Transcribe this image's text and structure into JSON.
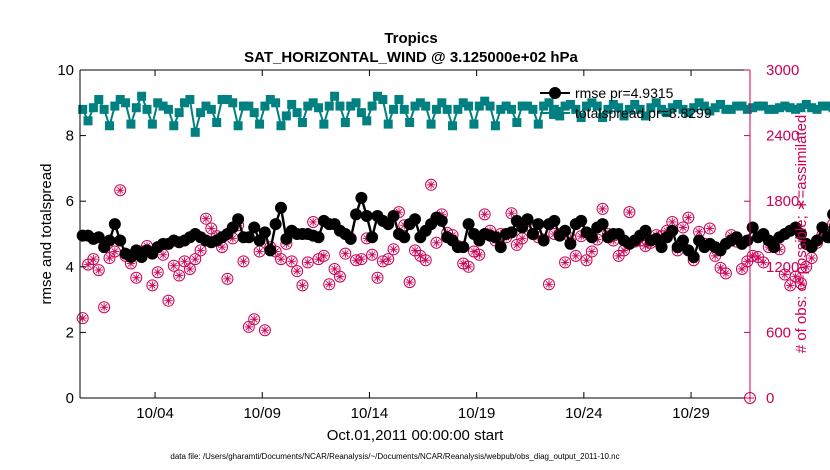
{
  "colors": {
    "rmse": "#000000",
    "spread": "#008080",
    "obs": "#cc0055",
    "axis": "#000000"
  },
  "chart_data": {
    "type": "line",
    "title": "Tropics",
    "subtitle": "SAT_HORIZONTAL_WIND @ 3.125000e+02 hPa",
    "xlabel": "Oct.01,2011 00:00:00 start",
    "ylabel_left": "rmse and totalspread",
    "ylabel_right": "# of obs: o=possible; ∗=assimilated",
    "footer": "data file: /Users/gharamti/Documents/NCAR/Reanalysis/~/Documents/NCAR/Reanalysis/webpub/obs_diag_output_2011-10.nc",
    "xlim": [
      0.5,
      31.75
    ],
    "ylim_left": [
      0,
      10
    ],
    "ylim_right": [
      0,
      3000
    ],
    "xticks": [
      {
        "v": 4,
        "label": "10/04"
      },
      {
        "v": 9,
        "label": "10/09"
      },
      {
        "v": 14,
        "label": "10/14"
      },
      {
        "v": 19,
        "label": "10/19"
      },
      {
        "v": 24,
        "label": "10/24"
      },
      {
        "v": 29,
        "label": "10/29"
      }
    ],
    "yticks_left": [
      {
        "v": 0,
        "label": "0"
      },
      {
        "v": 2,
        "label": "2"
      },
      {
        "v": 4,
        "label": "4"
      },
      {
        "v": 6,
        "label": "6"
      },
      {
        "v": 8,
        "label": "8"
      },
      {
        "v": 10,
        "label": "10"
      }
    ],
    "yticks_right": [
      {
        "v": 0,
        "label": "0"
      },
      {
        "v": 600,
        "label": "600"
      },
      {
        "v": 1200,
        "label": "1200"
      },
      {
        "v": 1800,
        "label": "1800"
      },
      {
        "v": 2400,
        "label": "2400"
      },
      {
        "v": 3000,
        "label": "3000"
      }
    ],
    "legend": [
      {
        "name": "rmse",
        "label": "rmse pr=4.9315"
      },
      {
        "name": "totalspread",
        "label": "totalspread pr=8.8299"
      }
    ],
    "x_start": 0.625,
    "x_step": 0.25,
    "series": [
      {
        "name": "rmse",
        "axis": "left",
        "values": [
          4.95,
          4.95,
          4.85,
          4.9,
          4.6,
          4.8,
          5.3,
          4.8,
          4.4,
          4.3,
          4.5,
          4.3,
          4.5,
          4.4,
          4.6,
          4.7,
          4.7,
          4.8,
          4.75,
          4.8,
          4.9,
          5.0,
          4.9,
          4.8,
          4.75,
          4.8,
          4.9,
          5.0,
          5.2,
          5.45,
          4.9,
          4.9,
          5.2,
          4.8,
          5.05,
          4.5,
          5.3,
          5.8,
          4.85,
          5.1,
          5.0,
          5.0,
          5.0,
          4.95,
          4.9,
          5.4,
          5.3,
          5.3,
          5.1,
          5.0,
          4.85,
          5.6,
          6.1,
          5.55,
          4.9,
          5.55,
          5.4,
          5.3,
          5.55,
          5.0,
          4.9,
          5.3,
          5.45,
          4.9,
          5.1,
          5.3,
          5.5,
          5.4,
          4.9,
          4.8,
          4.6,
          4.6,
          5.3,
          5.0,
          4.8,
          5.0,
          4.95,
          4.9,
          4.6,
          5.0,
          5.05,
          5.4,
          5.2,
          5.45,
          5.0,
          5.3,
          4.8,
          5.3,
          5.4,
          4.95,
          5.1,
          4.7,
          5.3,
          5.4,
          5.05,
          4.9,
          5.2,
          5.3,
          4.9,
          5.0,
          5.0,
          4.8,
          4.7,
          4.8,
          4.95,
          5.1,
          4.8,
          4.85,
          4.6,
          4.9,
          5.1,
          4.6,
          4.8,
          4.5,
          4.3,
          4.8,
          4.6,
          4.7,
          4.6,
          4.5,
          4.7,
          4.8,
          4.9,
          4.7,
          4.8,
          5.2,
          4.9,
          5.0,
          4.8,
          4.6,
          4.9,
          5.0,
          5.1,
          5.2,
          5.0,
          4.7,
          4.6,
          4.8,
          5.2,
          4.9,
          5.6,
          5.4,
          5.2,
          4.9,
          5.1
        ]
      },
      {
        "name": "totalspread",
        "axis": "left",
        "values": [
          8.8,
          8.45,
          8.85,
          9.1,
          8.8,
          8.3,
          8.9,
          9.1,
          9.0,
          8.35,
          8.85,
          9.2,
          8.8,
          8.35,
          9.0,
          8.9,
          8.8,
          8.3,
          8.7,
          9.0,
          9.1,
          8.1,
          8.7,
          8.9,
          8.8,
          8.4,
          9.1,
          9.1,
          9.0,
          8.3,
          8.9,
          8.9,
          8.7,
          8.35,
          8.9,
          9.1,
          9.0,
          8.3,
          8.6,
          8.95,
          8.7,
          8.4,
          8.9,
          9.0,
          8.85,
          8.35,
          8.9,
          9.2,
          8.9,
          8.4,
          8.9,
          9.0,
          8.7,
          8.45,
          8.9,
          9.2,
          9.1,
          8.35,
          8.8,
          9.1,
          8.8,
          8.4,
          8.9,
          9.0,
          8.9,
          8.35,
          8.8,
          9.0,
          8.8,
          8.3,
          8.8,
          9.0,
          8.9,
          8.35,
          8.9,
          9.05,
          8.9,
          8.3,
          8.8,
          8.9,
          8.8,
          8.4,
          8.9,
          8.9,
          8.8,
          8.35,
          8.9,
          9.0,
          8.8,
          8.6,
          8.9,
          8.95,
          8.8,
          8.55,
          8.9,
          9.0,
          8.9,
          8.55,
          8.8,
          8.95,
          8.85,
          8.6,
          8.8,
          8.95,
          8.8,
          8.6,
          8.85,
          9.0,
          8.8,
          8.7,
          8.85,
          8.95,
          8.8,
          8.7,
          8.85,
          9.0,
          8.9,
          8.75,
          8.85,
          8.95,
          8.8,
          8.8,
          8.9,
          8.9,
          8.8,
          8.85,
          8.9,
          8.9,
          8.8,
          8.8,
          8.85,
          8.9,
          8.85,
          8.8,
          8.85,
          8.95,
          8.85,
          8.8,
          8.9,
          8.9,
          8.85,
          8.9,
          8.9,
          8.9,
          8.95
        ]
      },
      {
        "name": "obs",
        "axis": "right",
        "values": [
          730,
          1220,
          1270,
          1170,
          830,
          1280,
          1340,
          1900,
          1300,
          1230,
          1100,
          1340,
          1390,
          1030,
          1150,
          1310,
          890,
          1210,
          1120,
          1250,
          1180,
          1270,
          1350,
          1640,
          1550,
          1480,
          1380,
          1090,
          1460,
          1580,
          1250,
          650,
          720,
          1340,
          620,
          1380,
          1340,
          1270,
          1410,
          1250,
          1160,
          1030,
          1240,
          1610,
          1270,
          1300,
          1040,
          1180,
          1110,
          1320,
          1460,
          1260,
          1270,
          1460,
          1310,
          1100,
          1250,
          1270,
          1360,
          1700,
          1580,
          1060,
          1350,
          1300,
          1260,
          1950,
          1420,
          1680,
          1510,
          1490,
          1390,
          1230,
          1200,
          1340,
          1310,
          1680,
          1530,
          1440,
          1500,
          1470,
          1690,
          1400,
          1460,
          1620,
          1500,
          1470,
          1450,
          1040,
          1500,
          1500,
          1240,
          1460,
          1300,
          1480,
          1260,
          1340,
          1450,
          1730,
          1500,
          1440,
          1300,
          1350,
          1700,
          1430,
          1440,
          1390,
          1420,
          1490,
          1480,
          1530,
          1610,
          1350,
          1560,
          1650,
          1260,
          1520,
          1410,
          1550,
          1300,
          1190,
          1140,
          1490,
          1430,
          1180,
          1250,
          1300,
          1290,
          1240,
          1380,
          1430,
          1360,
          1130,
          1030,
          1110,
          1050,
          1200,
          1280,
          1420,
          1490,
          1490,
          1590,
          1460,
          1710,
          1480,
          1520,
          1510,
          1420
        ]
      },
      {
        "name": "obs_assim_only",
        "axis": "right",
        "values": [
          1490,
          1500,
          1460,
          1430,
          1380,
          1410,
          1420,
          1950,
          1450,
          1440,
          1500,
          1460,
          1430,
          1460,
          1400,
          1430,
          1440,
          1350,
          1450,
          1420,
          1470,
          1490,
          1520,
          1850,
          1600,
          1610,
          1550,
          1490,
          1520,
          1560,
          1480,
          1430,
          1470,
          1500,
          1490,
          1520,
          1530,
          1590,
          1550,
          1510,
          1500,
          1490,
          1520,
          1500,
          1480,
          1510,
          1520,
          1480,
          1470,
          1490,
          1480,
          1520,
          1510,
          1480,
          1470,
          1500,
          1520,
          1510,
          1500,
          2100,
          2000,
          1470,
          1500,
          1510,
          1450,
          1900,
          1500,
          1800,
          1500,
          1470,
          1460,
          1450,
          1490,
          1500,
          1490,
          1850,
          1530,
          1500,
          1490,
          1510,
          1840,
          1460,
          1500,
          1530,
          1520,
          1480,
          1470,
          1460,
          1510,
          1500,
          1480,
          1470,
          1440,
          1480,
          1460,
          1490,
          1500,
          1720,
          1520,
          1470,
          1440,
          1450,
          1530,
          1470,
          1450,
          1440,
          1470,
          1490,
          1480,
          1510,
          1530,
          1450,
          1520,
          1530,
          1440,
          1510,
          1470,
          1520,
          1450,
          1400,
          1420,
          1500,
          1470,
          1430,
          1410,
          1420,
          1440,
          1420,
          1470,
          1500,
          1450,
          1400,
          1380,
          1410,
          1400,
          1420,
          1440,
          1480,
          1500,
          1500,
          1520,
          1490,
          1500,
          1480,
          1490,
          1510,
          1470
        ]
      }
    ],
    "last_obs": {
      "x": 31.75,
      "value": 0
    }
  }
}
